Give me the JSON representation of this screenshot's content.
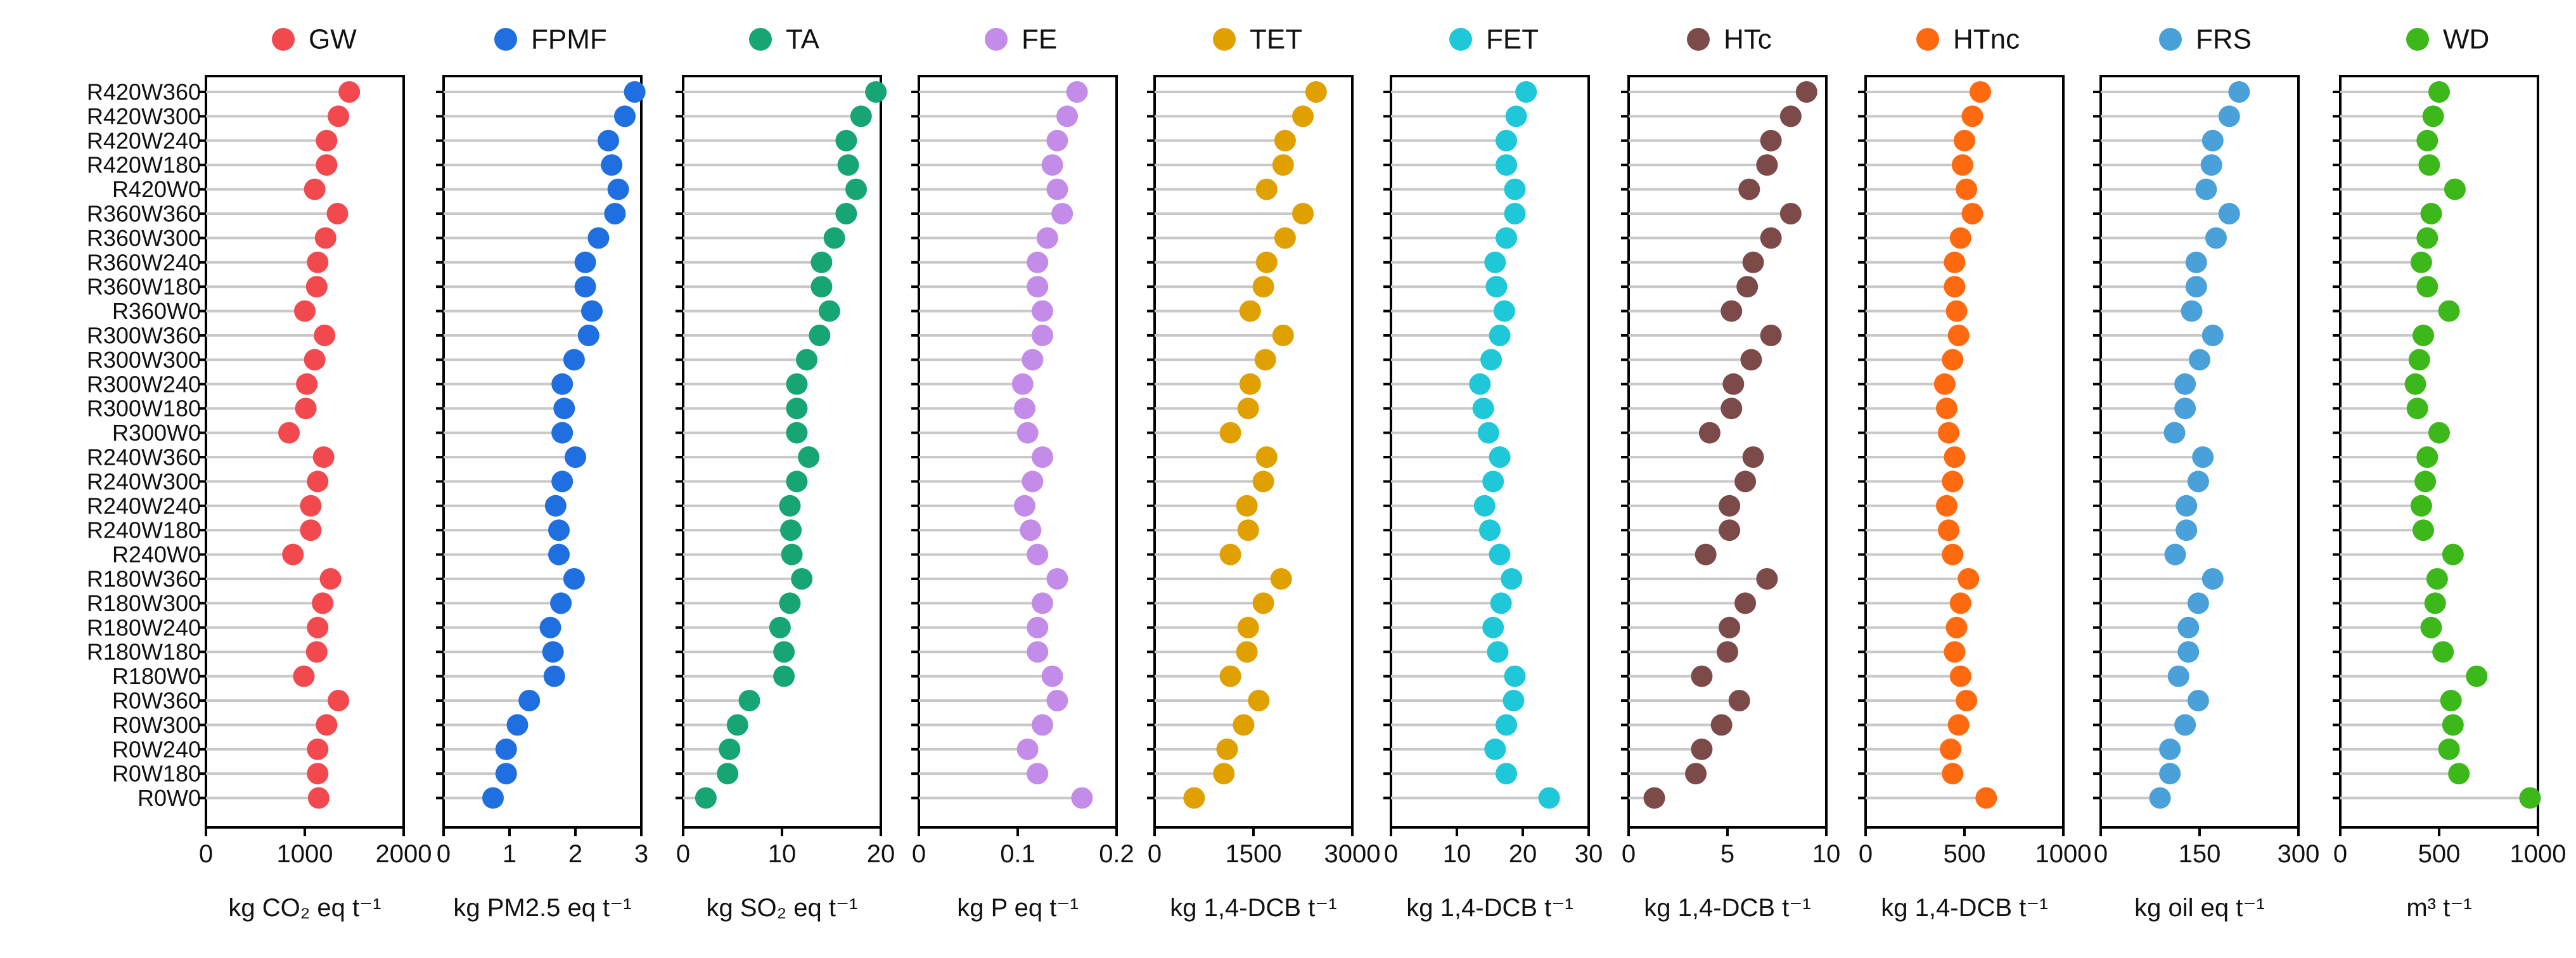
{
  "chart_data": {
    "type": "scatter",
    "style": "lollipop",
    "categories": [
      "R420W360",
      "R420W300",
      "R420W240",
      "R420W180",
      "R420W0",
      "R360W360",
      "R360W300",
      "R360W240",
      "R360W180",
      "R360W0",
      "R300W360",
      "R300W300",
      "R300W240",
      "R300W180",
      "R300W0",
      "R240W360",
      "R240W300",
      "R240W240",
      "R240W180",
      "R240W0",
      "R180W360",
      "R180W300",
      "R180W240",
      "R180W180",
      "R180W0",
      "R0W360",
      "R0W300",
      "R0W240",
      "R0W180",
      "R0W0"
    ],
    "panels": [
      {
        "name": "GW",
        "color": "#f2494f",
        "xlim": [
          0,
          2000
        ],
        "ticks": [
          0,
          1000,
          2000
        ],
        "tick_labels": [
          "0",
          "1000",
          "2000"
        ],
        "xlabel": "kg CO₂ eq t⁻¹",
        "values": [
          1450,
          1340,
          1220,
          1220,
          1100,
          1330,
          1210,
          1130,
          1120,
          1000,
          1200,
          1100,
          1020,
          1010,
          840,
          1190,
          1130,
          1060,
          1060,
          880,
          1260,
          1180,
          1130,
          1120,
          990,
          1340,
          1220,
          1130,
          1130,
          1140
        ]
      },
      {
        "name": "FPMF",
        "color": "#1f6fe0",
        "xlim": [
          0,
          3
        ],
        "ticks": [
          0,
          1,
          2,
          3
        ],
        "tick_labels": [
          "0",
          "1",
          "2",
          "3"
        ],
        "xlabel": "kg PM2.5 eq t⁻¹",
        "values": [
          2.9,
          2.75,
          2.5,
          2.55,
          2.65,
          2.6,
          2.35,
          2.15,
          2.15,
          2.25,
          2.2,
          1.98,
          1.8,
          1.83,
          1.8,
          2.0,
          1.8,
          1.7,
          1.75,
          1.75,
          1.98,
          1.78,
          1.62,
          1.66,
          1.68,
          1.3,
          1.12,
          0.95,
          0.95,
          0.75
        ]
      },
      {
        "name": "TA",
        "color": "#17a673",
        "xlim": [
          0,
          20
        ],
        "ticks": [
          0,
          10,
          20
        ],
        "tick_labels": [
          "0",
          "10",
          "20"
        ],
        "xlabel": "kg SO₂ eq t⁻¹",
        "values": [
          19.5,
          18.0,
          16.5,
          16.7,
          17.5,
          16.5,
          15.3,
          14.0,
          14.0,
          14.8,
          13.8,
          12.5,
          11.5,
          11.5,
          11.5,
          12.7,
          11.5,
          10.8,
          10.9,
          11.0,
          12.0,
          10.8,
          9.8,
          10.2,
          10.2,
          6.7,
          5.5,
          4.7,
          4.5,
          2.3
        ]
      },
      {
        "name": "FE",
        "color": "#c38ce8",
        "xlim": [
          0,
          0.2
        ],
        "ticks": [
          0,
          0.1,
          0.2
        ],
        "tick_labels": [
          "0",
          "0.1",
          "0.2"
        ],
        "xlabel": "kg P eq t⁻¹",
        "values": [
          0.16,
          0.15,
          0.14,
          0.135,
          0.14,
          0.145,
          0.13,
          0.12,
          0.12,
          0.125,
          0.125,
          0.115,
          0.105,
          0.107,
          0.11,
          0.125,
          0.115,
          0.107,
          0.113,
          0.12,
          0.14,
          0.125,
          0.12,
          0.12,
          0.135,
          0.14,
          0.125,
          0.11,
          0.12,
          0.165
        ]
      },
      {
        "name": "TET",
        "color": "#e0a000",
        "xlim": [
          0,
          3000
        ],
        "ticks": [
          0,
          1500,
          3000
        ],
        "tick_labels": [
          "0",
          "1500",
          "3000"
        ],
        "xlabel": "kg 1,4-DCB t⁻¹",
        "values": [
          2450,
          2250,
          1980,
          1950,
          1700,
          2250,
          1980,
          1700,
          1650,
          1450,
          1950,
          1680,
          1450,
          1420,
          1150,
          1700,
          1650,
          1400,
          1420,
          1150,
          1920,
          1650,
          1420,
          1400,
          1150,
          1580,
          1350,
          1100,
          1050,
          600
        ]
      },
      {
        "name": "FET",
        "color": "#1ec8d8",
        "xlim": [
          0,
          30
        ],
        "ticks": [
          0,
          10,
          20,
          30
        ],
        "tick_labels": [
          "0",
          "10",
          "20",
          "30"
        ],
        "xlabel": "kg 1,4-DCB t⁻¹",
        "values": [
          20.5,
          19.0,
          17.5,
          17.5,
          18.8,
          18.8,
          17.5,
          15.8,
          16.0,
          17.2,
          16.5,
          15.2,
          13.5,
          14.0,
          14.8,
          16.5,
          15.5,
          14.2,
          15.0,
          16.5,
          18.3,
          16.7,
          15.5,
          16.2,
          18.8,
          18.6,
          17.5,
          15.8,
          17.5,
          24.0
        ]
      },
      {
        "name": "HTc",
        "color": "#7d4a4a",
        "xlim": [
          0,
          10
        ],
        "ticks": [
          0,
          5,
          10
        ],
        "tick_labels": [
          "0",
          "5",
          "10"
        ],
        "xlabel": "kg 1,4-DCB t⁻¹",
        "values": [
          9.0,
          8.2,
          7.2,
          7.0,
          6.1,
          8.2,
          7.2,
          6.3,
          6.0,
          5.2,
          7.2,
          6.2,
          5.3,
          5.2,
          4.1,
          6.3,
          5.9,
          5.1,
          5.1,
          3.9,
          7.0,
          5.9,
          5.1,
          5.0,
          3.7,
          5.6,
          4.7,
          3.7,
          3.4,
          1.3
        ]
      },
      {
        "name": "HTnc",
        "color": "#ff6a10",
        "xlim": [
          0,
          1000
        ],
        "ticks": [
          0,
          500,
          1000
        ],
        "tick_labels": [
          "0",
          "500",
          "1000"
        ],
        "xlabel": "kg 1,4-DCB t⁻¹",
        "values": [
          580,
          540,
          500,
          490,
          510,
          540,
          480,
          450,
          450,
          460,
          470,
          440,
          400,
          410,
          420,
          450,
          440,
          410,
          420,
          440,
          520,
          480,
          460,
          450,
          480,
          510,
          470,
          430,
          440,
          610
        ]
      },
      {
        "name": "FRS",
        "color": "#4aa0d8",
        "xlim": [
          0,
          300
        ],
        "ticks": [
          0,
          150,
          300
        ],
        "tick_labels": [
          "0",
          "150",
          "300"
        ],
        "xlabel": "kg oil eq t⁻¹",
        "values": [
          210,
          195,
          170,
          168,
          160,
          195,
          175,
          145,
          145,
          138,
          170,
          150,
          128,
          128,
          112,
          155,
          148,
          130,
          130,
          113,
          170,
          148,
          133,
          133,
          118,
          148,
          128,
          105,
          105,
          90
        ]
      },
      {
        "name": "WD",
        "color": "#3cb81a",
        "xlim": [
          0,
          1000
        ],
        "ticks": [
          0,
          500,
          1000
        ],
        "tick_labels": [
          "0",
          "500",
          "1000"
        ],
        "xlabel": "m³ t⁻¹",
        "values": [
          500,
          470,
          440,
          450,
          580,
          460,
          440,
          410,
          440,
          550,
          420,
          400,
          380,
          390,
          500,
          440,
          430,
          410,
          420,
          570,
          490,
          480,
          460,
          520,
          690,
          560,
          570,
          550,
          600,
          960
        ]
      }
    ]
  }
}
